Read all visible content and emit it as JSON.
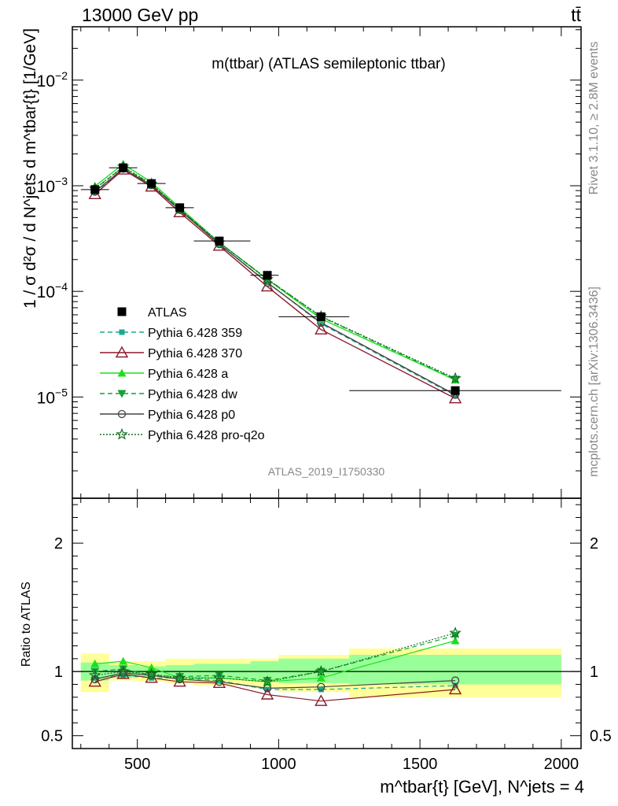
{
  "header": {
    "left": "13000 GeV pp",
    "right": "tt̄"
  },
  "side_labels": {
    "rivet": "Rivet 3.1.10, ≥ 2.8M events",
    "mcplots": "mcplots.cern.ch [arXiv:1306.3436]"
  },
  "chart_data": {
    "type": "line",
    "title": "m(ttbar) (ATLAS semileptonic ttbar)",
    "analysis_id": "ATLAS_2019_I1750330",
    "ylabel": "1 / σ d²σ / d N^jets d m^tbar{t} [1/GeV]",
    "xlabel": "m^tbar{t} [GeV], N^jets = 4",
    "ratio_ylabel": "Ratio to ATLAS",
    "xlim": [
      270,
      2070
    ],
    "ylim": [
      1.1e-06,
      0.032
    ],
    "ylog": true,
    "ratio_ylim": [
      0.4,
      2.35
    ],
    "x_ticks": [
      500,
      1000,
      1500,
      2000
    ],
    "x_tick_labels": [
      "500",
      "1000",
      "1500",
      "2000"
    ],
    "y_ticks": [
      1e-05,
      0.0001,
      0.001,
      0.01
    ],
    "y_tick_labels": [
      {
        "base": "10",
        "exp": "−5"
      },
      {
        "base": "10",
        "exp": "−4"
      },
      {
        "base": "10",
        "exp": "−3"
      },
      {
        "base": "10",
        "exp": "−2"
      }
    ],
    "ratio_ticks": [
      0.5,
      1,
      2
    ],
    "ratio_tick_labels": [
      "0.5",
      "1",
      "2"
    ],
    "bin_edges": [
      300,
      400,
      500,
      600,
      700,
      900,
      1000,
      1250,
      2000
    ],
    "x": [
      350,
      450,
      550,
      650,
      790,
      960,
      1150,
      1625
    ],
    "atlas": {
      "name": "ATLAS",
      "values": [
        0.00092,
        0.00148,
        0.00105,
        0.00062,
        0.0003,
        0.000142,
        5.75e-05,
        1.15e-05
      ],
      "band_inner": [
        [
          0.93,
          1.07
        ],
        [
          0.95,
          1.05
        ],
        [
          0.96,
          1.04
        ],
        [
          0.95,
          1.05
        ],
        [
          0.94,
          1.06
        ],
        [
          0.93,
          1.08
        ],
        [
          0.91,
          1.1
        ],
        [
          0.9,
          1.13
        ]
      ],
      "band_outer": [
        [
          0.84,
          1.14
        ],
        [
          0.93,
          1.08
        ],
        [
          0.92,
          1.08
        ],
        [
          0.91,
          1.1
        ],
        [
          0.89,
          1.1
        ],
        [
          0.87,
          1.1
        ],
        [
          0.84,
          1.13
        ],
        [
          0.8,
          1.18
        ]
      ]
    },
    "series": [
      {
        "name": "Pythia 6.428 359",
        "color": "#1aaa8c",
        "dash": "6,4",
        "marker": "square",
        "values": [
          0.00087,
          0.00143,
          0.001,
          0.00059,
          0.00028,
          0.000122,
          4.95e-05,
          1.03e-05
        ],
        "ratio": [
          0.95,
          0.97,
          0.95,
          0.95,
          0.93,
          0.86,
          0.86,
          0.89
        ]
      },
      {
        "name": "Pythia 6.428 370",
        "color": "#8b1a2b",
        "dash": "",
        "marker": "open-triangle",
        "values": [
          0.00083,
          0.00142,
          0.00098,
          0.00056,
          0.00027,
          0.000111,
          4.35e-05,
          9.7e-06
        ],
        "ratio": [
          0.92,
          0.98,
          0.95,
          0.92,
          0.91,
          0.82,
          0.77,
          0.86
        ]
      },
      {
        "name": "Pythia 6.428 a",
        "color": "#1ce01c",
        "dash": "",
        "marker": "triangle",
        "values": [
          0.00099,
          0.0016,
          0.00108,
          0.00062,
          0.00029,
          0.00013,
          5.5e-05,
          1.45e-05
        ],
        "ratio": [
          1.06,
          1.08,
          1.03,
          0.95,
          0.95,
          0.92,
          0.95,
          1.24
        ]
      },
      {
        "name": "Pythia 6.428 dw",
        "color": "#16a035",
        "dash": "6,4",
        "marker": "down-triangle",
        "values": [
          0.00093,
          0.0015,
          0.00103,
          0.0006,
          0.00029,
          0.000131,
          5.75e-05,
          1.47e-05
        ],
        "ratio": [
          1.0,
          1.02,
          0.97,
          0.96,
          0.97,
          0.93,
          1.0,
          1.28
        ]
      },
      {
        "name": "Pythia 6.428 p0",
        "color": "#444444",
        "dash": "",
        "marker": "open-circle",
        "values": [
          0.00088,
          0.00145,
          0.00101,
          0.00059,
          0.00028,
          0.000121,
          5.05e-05,
          1.05e-05
        ],
        "ratio": [
          0.94,
          0.99,
          0.97,
          0.94,
          0.92,
          0.87,
          0.88,
          0.93
        ]
      },
      {
        "name": "Pythia 6.428 pro-q2o",
        "color": "#126e1e",
        "dash": "2,2",
        "marker": "star",
        "values": [
          0.00094,
          0.00151,
          0.00104,
          0.0006,
          0.00029,
          0.00013,
          5.8e-05,
          1.5e-05
        ],
        "ratio": [
          0.97,
          1.0,
          0.98,
          0.95,
          0.95,
          0.92,
          1.0,
          1.3
        ]
      }
    ]
  }
}
